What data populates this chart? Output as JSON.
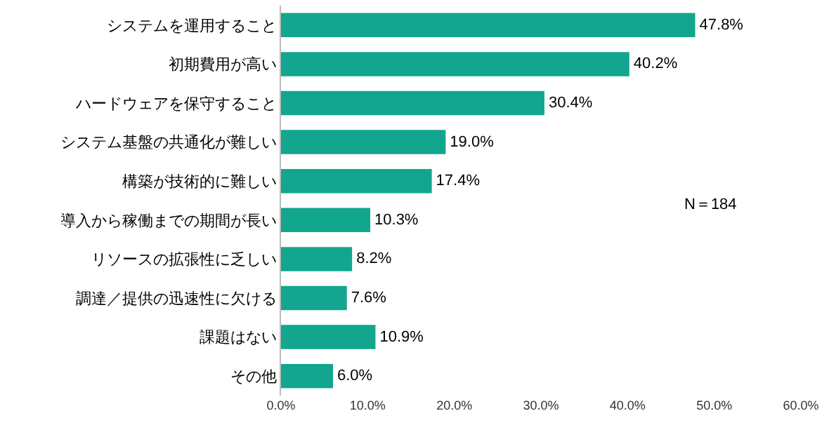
{
  "chart_data": {
    "type": "bar",
    "orientation": "horizontal",
    "categories": [
      "システムを運用すること",
      "初期費用が高い",
      "ハードウェアを保守すること",
      "システム基盤の共通化が難しい",
      "構築が技術的に難しい",
      "導入から稼働までの期間が長い",
      "リソースの拡張性に乏しい",
      "調達／提供の迅速性に欠ける",
      "課題はない",
      "その他"
    ],
    "values": [
      47.8,
      40.2,
      30.4,
      19.0,
      17.4,
      10.3,
      8.2,
      7.6,
      10.9,
      6.0
    ],
    "value_labels": [
      "47.8%",
      "40.2%",
      "30.4%",
      "19.0%",
      "17.4%",
      "10.3%",
      "8.2%",
      "7.6%",
      "10.9%",
      "6.0%"
    ],
    "color": "#12a68e",
    "xlim": [
      0,
      60
    ],
    "xticks": [
      {
        "value": 0,
        "label": "0.0%"
      },
      {
        "value": 10,
        "label": "10.0%"
      },
      {
        "value": 20,
        "label": "20.0%"
      },
      {
        "value": 30,
        "label": "30.0%"
      },
      {
        "value": 40,
        "label": "40.0%"
      },
      {
        "value": 50,
        "label": "50.0%"
      },
      {
        "value": 60,
        "label": "60.0%"
      }
    ],
    "grid": false,
    "legend": false,
    "annotations": [
      "N＝184"
    ]
  }
}
